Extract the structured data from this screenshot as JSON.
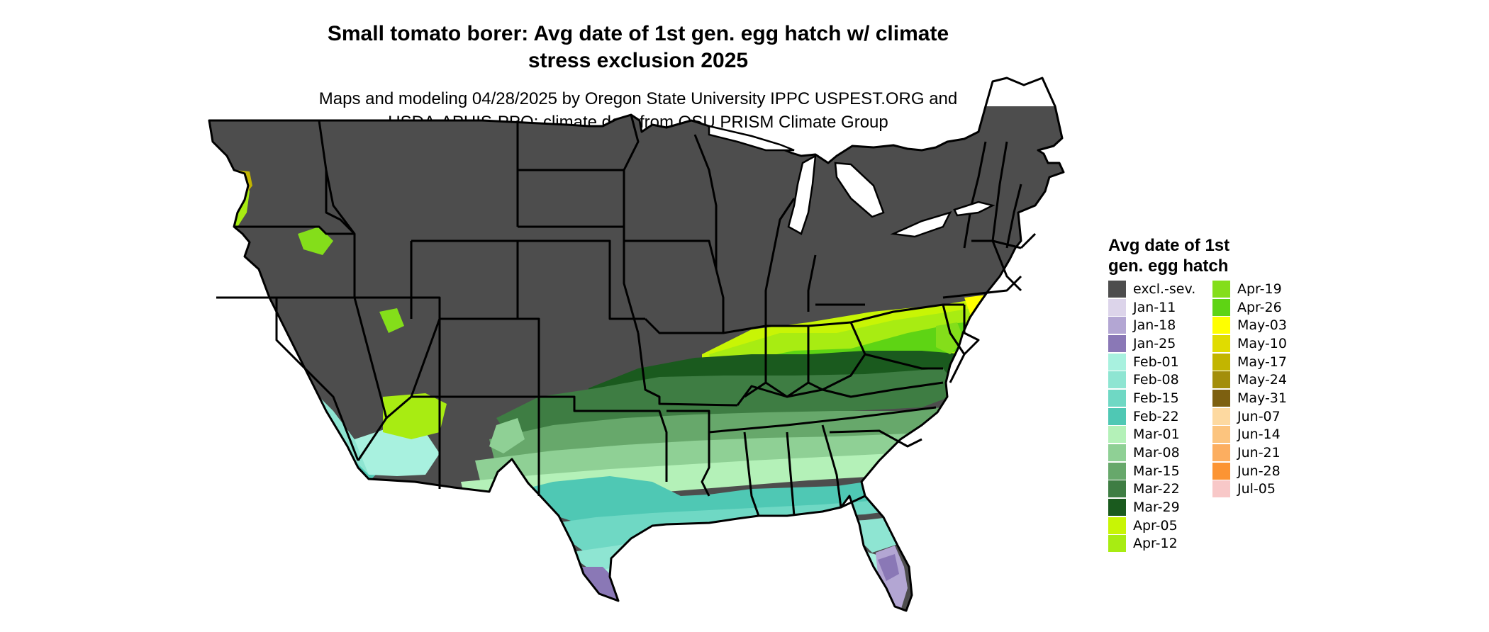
{
  "title_line1": "Small tomato borer: Avg date of 1st gen. egg hatch w/ climate",
  "title_line2": "stress exclusion 2025",
  "subtitle_line1": "Maps and modeling 04/28/2025 by Oregon State University IPPC USPEST.ORG and",
  "subtitle_line2": "USDA-APHIS-PPQ; climate data from OSU PRISM Climate Group",
  "legend": {
    "title_line1": "Avg date of 1st",
    "title_line2": "gen. egg hatch",
    "col1": [
      {
        "label": "excl.-sev.",
        "color": "#4d4d4d"
      },
      {
        "label": "Jan-11",
        "color": "#dcd4ea"
      },
      {
        "label": "Jan-18",
        "color": "#b3a6d3"
      },
      {
        "label": "Jan-25",
        "color": "#8a78b6"
      },
      {
        "label": "Feb-01",
        "color": "#a8f1df"
      },
      {
        "label": "Feb-08",
        "color": "#8ee5d2"
      },
      {
        "label": "Feb-15",
        "color": "#6fd8c4"
      },
      {
        "label": "Feb-22",
        "color": "#4fc8b4"
      },
      {
        "label": "Mar-01",
        "color": "#b4f1b8"
      },
      {
        "label": "Mar-08",
        "color": "#8fd095"
      },
      {
        "label": "Mar-15",
        "color": "#67a86b"
      },
      {
        "label": "Mar-22",
        "color": "#3e7d43"
      },
      {
        "label": "Mar-29",
        "color": "#1a5a1e"
      },
      {
        "label": "Apr-05",
        "color": "#c8f505"
      },
      {
        "label": "Apr-12",
        "color": "#a8ec12"
      }
    ],
    "col2": [
      {
        "label": "Apr-19",
        "color": "#84de1a"
      },
      {
        "label": "Apr-26",
        "color": "#5ed414"
      },
      {
        "label": "May-03",
        "color": "#ffff00"
      },
      {
        "label": "May-10",
        "color": "#e0dc00"
      },
      {
        "label": "May-17",
        "color": "#c2b500"
      },
      {
        "label": "May-24",
        "color": "#a38e0a"
      },
      {
        "label": "May-31",
        "color": "#7d6010"
      },
      {
        "label": "Jun-07",
        "color": "#fdd9a0"
      },
      {
        "label": "Jun-14",
        "color": "#fcc47e"
      },
      {
        "label": "Jun-21",
        "color": "#fcae60"
      },
      {
        "label": "Jun-28",
        "color": "#fc9433"
      },
      {
        "label": "Jul-05",
        "color": "#f8c8c8"
      }
    ]
  }
}
